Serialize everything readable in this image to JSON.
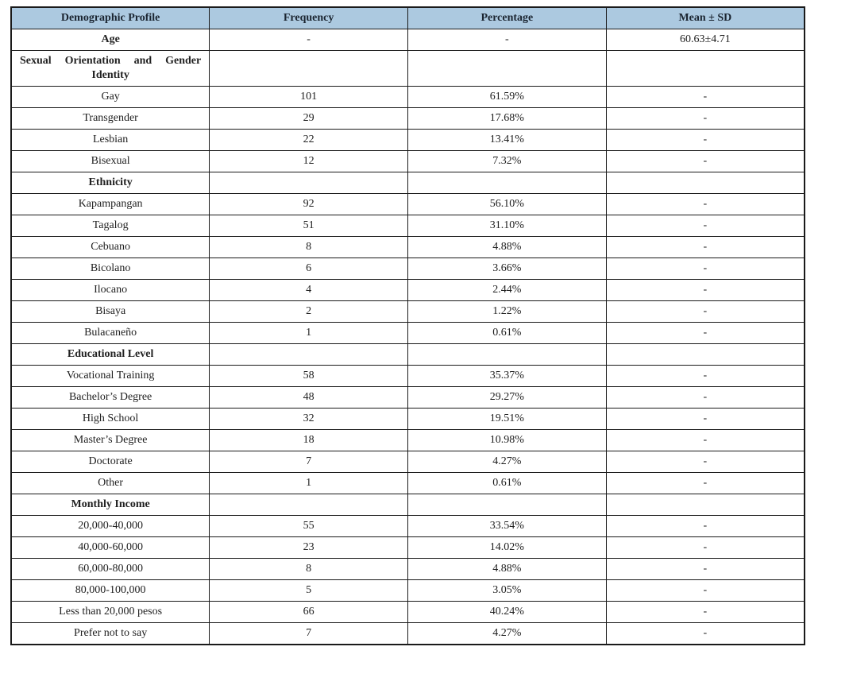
{
  "table": {
    "headers": [
      {
        "label": "Demographic Profile"
      },
      {
        "label": "Frequency"
      },
      {
        "label": "Percentage"
      },
      {
        "label": "Mean ± SD"
      }
    ],
    "header_bg_color": "#acc9e0",
    "border_color": "#1a1a1a",
    "rows": [
      {
        "label": "Age",
        "bold": true,
        "frequency": "-",
        "percentage": "-",
        "mean_sd": "60.63±4.71"
      },
      {
        "label": "Sexual Orientation and Gender Identity",
        "bold": true,
        "justify": true,
        "frequency": "",
        "percentage": "",
        "mean_sd": ""
      },
      {
        "label": "Gay",
        "frequency": "101",
        "percentage": "61.59%",
        "mean_sd": "-"
      },
      {
        "label": "Transgender",
        "frequency": "29",
        "percentage": "17.68%",
        "mean_sd": "-"
      },
      {
        "label": "Lesbian",
        "frequency": "22",
        "percentage": "13.41%",
        "mean_sd": "-"
      },
      {
        "label": "Bisexual",
        "frequency": "12",
        "percentage": "7.32%",
        "mean_sd": "-"
      },
      {
        "label": "Ethnicity",
        "bold": true,
        "frequency": "",
        "percentage": "",
        "mean_sd": ""
      },
      {
        "label": "Kapampangan",
        "frequency": "92",
        "percentage": "56.10%",
        "mean_sd": "-"
      },
      {
        "label": "Tagalog",
        "frequency": "51",
        "percentage": "31.10%",
        "mean_sd": "-"
      },
      {
        "label": "Cebuano",
        "frequency": "8",
        "percentage": "4.88%",
        "mean_sd": "-"
      },
      {
        "label": "Bicolano",
        "frequency": "6",
        "percentage": "3.66%",
        "mean_sd": "-"
      },
      {
        "label": "Ilocano",
        "frequency": "4",
        "percentage": "2.44%",
        "mean_sd": "-"
      },
      {
        "label": "Bisaya",
        "frequency": "2",
        "percentage": "1.22%",
        "mean_sd": "-"
      },
      {
        "label": "Bulacaneño",
        "frequency": "1",
        "percentage": "0.61%",
        "mean_sd": "-"
      },
      {
        "label": "Educational Level",
        "bold": true,
        "frequency": "",
        "percentage": "",
        "mean_sd": ""
      },
      {
        "label": "Vocational Training",
        "frequency": "58",
        "percentage": "35.37%",
        "mean_sd": "-"
      },
      {
        "label": "Bachelor’s Degree",
        "frequency": "48",
        "percentage": "29.27%",
        "mean_sd": "-"
      },
      {
        "label": "High School",
        "frequency": "32",
        "percentage": "19.51%",
        "mean_sd": "-"
      },
      {
        "label": "Master’s Degree",
        "frequency": "18",
        "percentage": "10.98%",
        "mean_sd": "-"
      },
      {
        "label": "Doctorate",
        "frequency": "7",
        "percentage": "4.27%",
        "mean_sd": "-"
      },
      {
        "label": "Other",
        "frequency": "1",
        "percentage": "0.61%",
        "mean_sd": "-"
      },
      {
        "label": "Monthly Income",
        "bold": true,
        "frequency": "",
        "percentage": "",
        "mean_sd": ""
      },
      {
        "label": "20,000-40,000",
        "frequency": "55",
        "percentage": "33.54%",
        "mean_sd": "-"
      },
      {
        "label": "40,000-60,000",
        "frequency": "23",
        "percentage": "14.02%",
        "mean_sd": "-"
      },
      {
        "label": "60,000-80,000",
        "frequency": "8",
        "percentage": "4.88%",
        "mean_sd": "-"
      },
      {
        "label": "80,000-100,000",
        "frequency": "5",
        "percentage": "3.05%",
        "mean_sd": "-"
      },
      {
        "label": "Less than 20,000 pesos",
        "frequency": "66",
        "percentage": "40.24%",
        "mean_sd": "-"
      },
      {
        "label": "Prefer not to say",
        "frequency": "7",
        "percentage": "4.27%",
        "mean_sd": "-"
      }
    ]
  }
}
